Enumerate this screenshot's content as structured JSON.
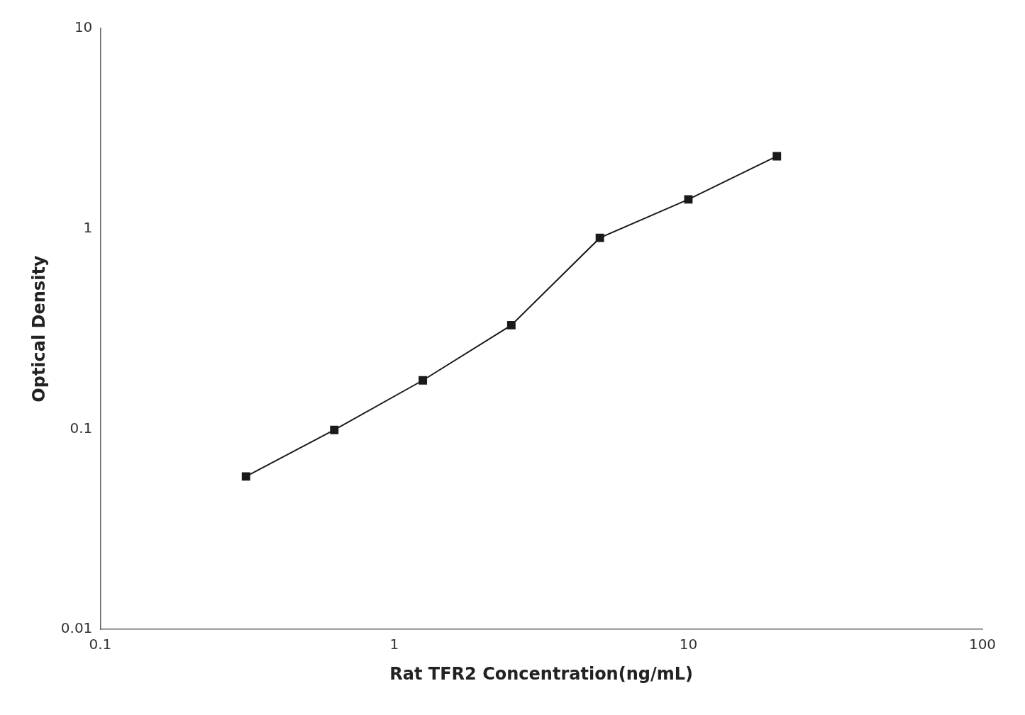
{
  "chart_data": {
    "type": "line",
    "x": [
      0.313,
      0.625,
      1.25,
      2.5,
      5.0,
      10.0,
      20.0
    ],
    "series": [
      {
        "values": [
          0.058,
          0.099,
          0.175,
          0.33,
          0.9,
          1.4,
          2.3
        ],
        "color": "#1a1a1a",
        "marker": "square",
        "line_style": "solid"
      }
    ],
    "xlabel": "Rat TFR2 Concentration(ng/mL)",
    "ylabel": "Optical Density",
    "xlim": [
      0.1,
      100
    ],
    "ylim": [
      0.01,
      10
    ],
    "xticks": [
      0.1,
      1,
      10,
      100
    ],
    "yticks": [
      0.01,
      0.1,
      1,
      10
    ],
    "log": true,
    "grid": false
  }
}
